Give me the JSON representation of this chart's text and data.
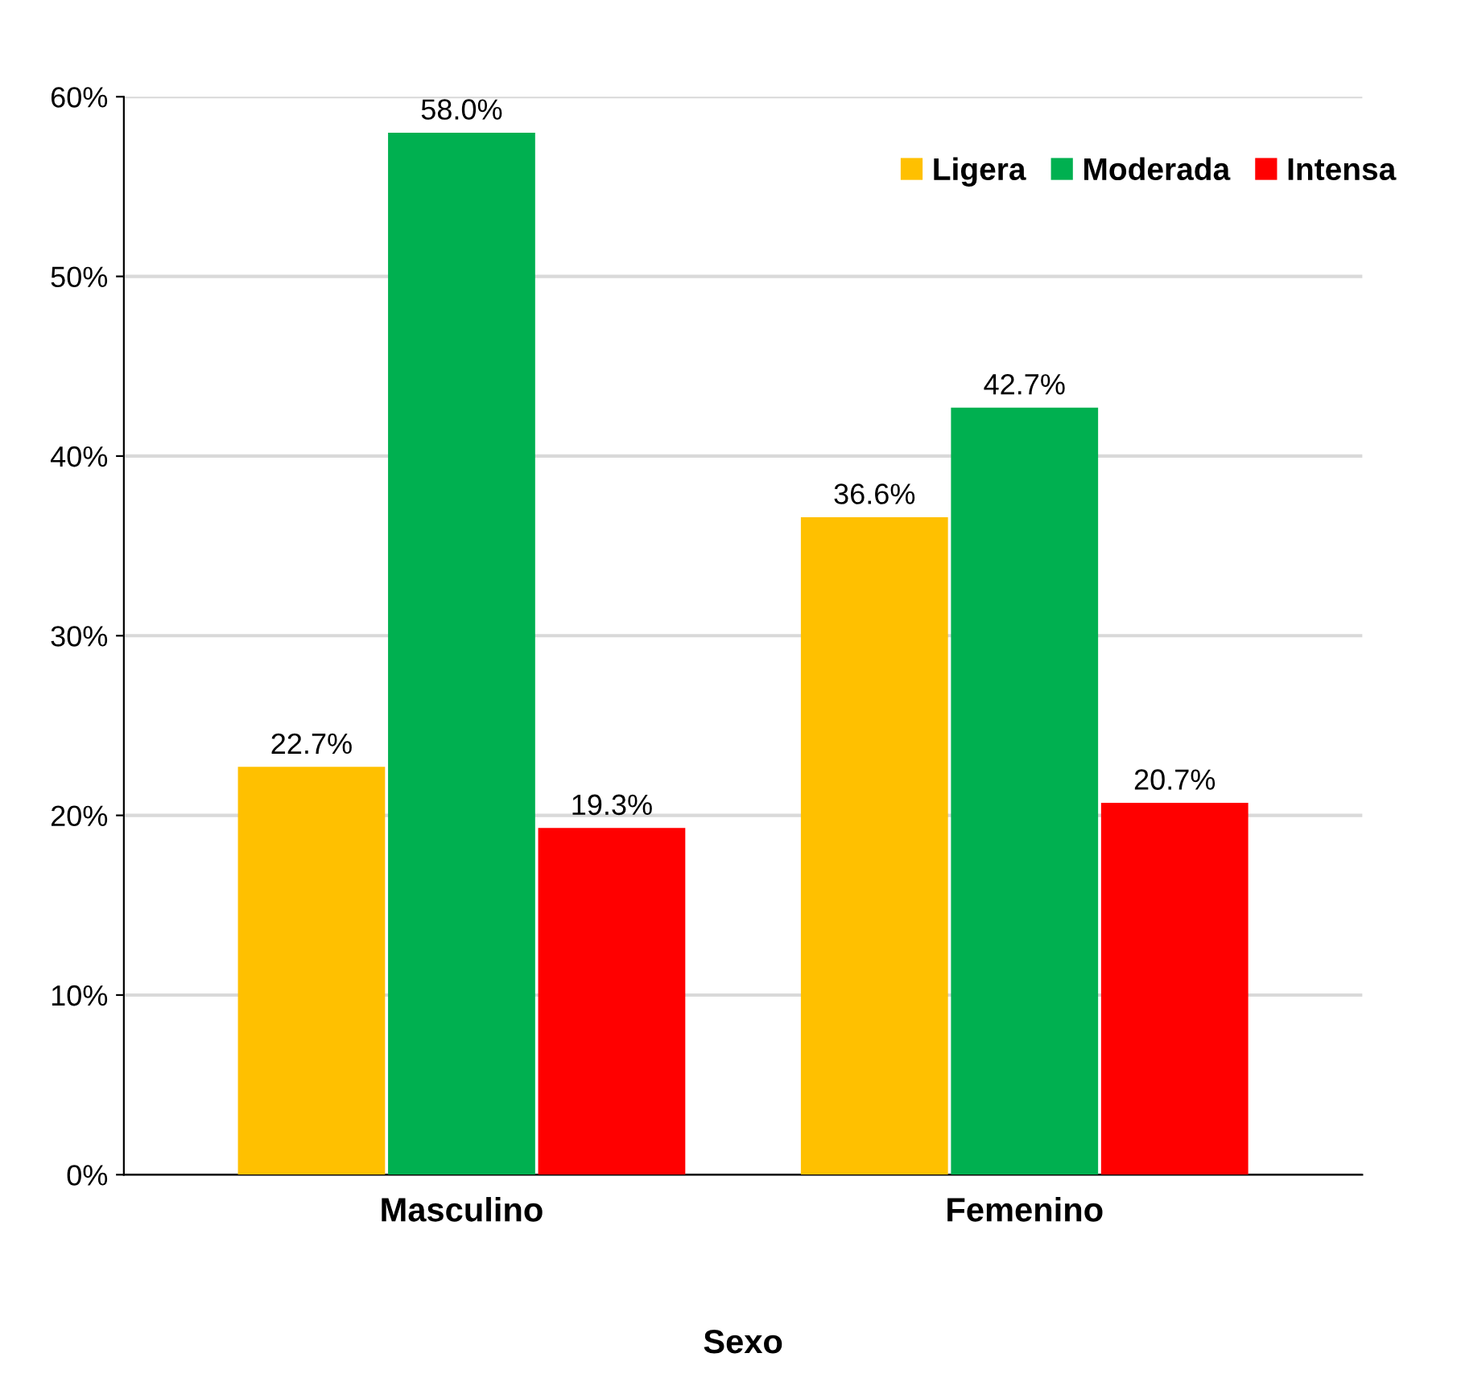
{
  "chart_data": {
    "type": "bar",
    "xlabel": "Sexo",
    "categories": [
      "Masculino",
      "Femenino"
    ],
    "series": [
      {
        "name": "Ligera",
        "color": "#ffc000",
        "values": [
          22.7,
          36.6
        ],
        "value_labels": [
          "22.7%",
          "36.6%"
        ]
      },
      {
        "name": "Moderada",
        "color": "#00b050",
        "values": [
          58.0,
          42.7
        ],
        "value_labels": [
          "58.0%",
          "42.7%"
        ]
      },
      {
        "name": "Intensa",
        "color": "#ff0000",
        "values": [
          19.3,
          20.7
        ],
        "value_labels": [
          "19.3%",
          "20.7%"
        ]
      }
    ],
    "ylim": [
      0,
      60
    ],
    "yticks": [
      {
        "value": 0,
        "label": "0%"
      },
      {
        "value": 10,
        "label": "10%"
      },
      {
        "value": 20,
        "label": "20%"
      },
      {
        "value": 30,
        "label": "30%"
      },
      {
        "value": 40,
        "label": "40%"
      },
      {
        "value": 50,
        "label": "50%"
      },
      {
        "value": 60,
        "label": "60%"
      }
    ],
    "grid": "y",
    "legend": "top right"
  }
}
